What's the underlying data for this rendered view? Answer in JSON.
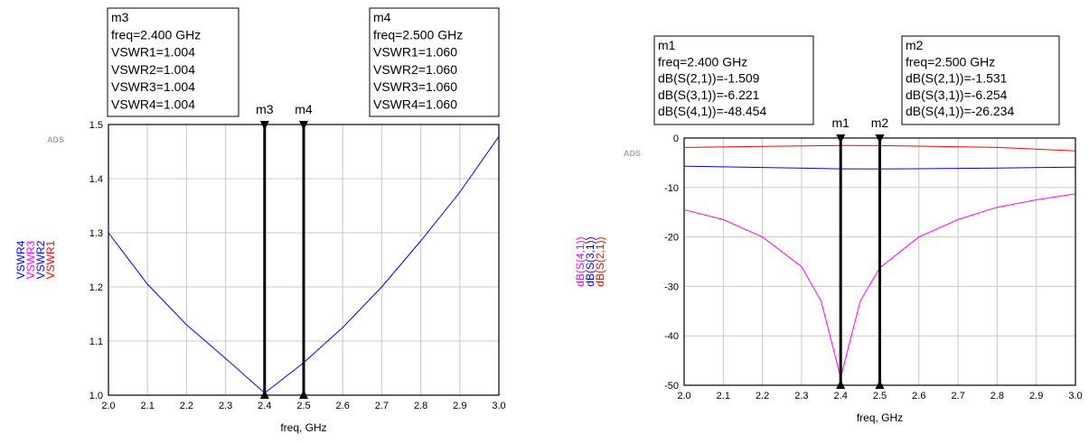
{
  "chart_data": [
    {
      "type": "line",
      "watermark": "ADS",
      "xlabel": "freq, GHz",
      "xlim": [
        2.0,
        3.0
      ],
      "ylim": [
        1.0,
        1.5
      ],
      "xticks": [
        "2.0",
        "2.1",
        "2.2",
        "2.3",
        "2.4",
        "2.5",
        "2.6",
        "2.7",
        "2.8",
        "2.9",
        "3.0"
      ],
      "yticks": [
        "1.0",
        "1.1",
        "1.2",
        "1.3",
        "1.4",
        "1.5"
      ],
      "ylabels": [
        {
          "text": "VSWR4",
          "color": "#0000ff"
        },
        {
          "text": "VSWR3",
          "color": "#ff00ff"
        },
        {
          "text": "VSWR2",
          "color": "#0000ff"
        },
        {
          "text": "VSWR1",
          "color": "#ff0000"
        }
      ],
      "series": [
        {
          "name": "VSWR4",
          "color": "#0000ff",
          "x": [
            2.0,
            2.1,
            2.2,
            2.3,
            2.4,
            2.5,
            2.6,
            2.7,
            2.8,
            2.9,
            3.0
          ],
          "y": [
            1.3,
            1.205,
            1.13,
            1.068,
            1.004,
            1.06,
            1.125,
            1.2,
            1.285,
            1.375,
            1.478
          ]
        }
      ],
      "markers": [
        {
          "id": "m3",
          "x": 2.4,
          "lines": [
            "m3",
            "freq=2.400 GHz",
            "VSWR1=1.004",
            "VSWR2=1.004",
            "VSWR3=1.004",
            "VSWR4=1.004"
          ]
        },
        {
          "id": "m4",
          "x": 2.5,
          "lines": [
            "m4",
            "freq=2.500 GHz",
            "VSWR1=1.060",
            "VSWR2=1.060",
            "VSWR3=1.060",
            "VSWR4=1.060"
          ]
        }
      ]
    },
    {
      "type": "line",
      "watermark": "ADS",
      "xlabel": "freq, GHz",
      "xlim": [
        2.0,
        3.0
      ],
      "ylim": [
        -50,
        0
      ],
      "xticks": [
        "2.0",
        "2.1",
        "2.2",
        "2.3",
        "2.4",
        "2.5",
        "2.6",
        "2.7",
        "2.8",
        "2.9",
        "3.0"
      ],
      "yticks": [
        "-50",
        "-40",
        "-30",
        "-20",
        "-10",
        "0"
      ],
      "ylabels": [
        {
          "text": "dB(S(4,1))",
          "color": "#ff00ff"
        },
        {
          "text": "dB(S(3,1))",
          "color": "#0000ff"
        },
        {
          "text": "dB(S(2,1))",
          "color": "#ff0000"
        }
      ],
      "series": [
        {
          "name": "dB(S(2,1))",
          "color": "#ff0000",
          "x": [
            2.0,
            2.2,
            2.4,
            2.5,
            2.6,
            2.8,
            3.0
          ],
          "y": [
            -1.9,
            -1.7,
            -1.509,
            -1.531,
            -1.65,
            -1.9,
            -2.6
          ]
        },
        {
          "name": "dB(S(3,1))",
          "color": "#0000ff",
          "x": [
            2.0,
            2.2,
            2.4,
            2.5,
            2.6,
            2.8,
            3.0
          ],
          "y": [
            -5.7,
            -5.95,
            -6.221,
            -6.254,
            -6.2,
            -6.05,
            -5.9
          ]
        },
        {
          "name": "dB(S(4,1))",
          "color": "#ff00ff",
          "x": [
            2.0,
            2.1,
            2.2,
            2.3,
            2.35,
            2.4,
            2.45,
            2.5,
            2.6,
            2.7,
            2.8,
            2.9,
            3.0
          ],
          "y": [
            -14.5,
            -16.5,
            -20.0,
            -26.0,
            -33.0,
            -48.454,
            -33.0,
            -26.234,
            -20.0,
            -16.5,
            -14.0,
            -12.5,
            -11.3
          ]
        }
      ],
      "markers": [
        {
          "id": "m1",
          "x": 2.4,
          "lines": [
            "m1",
            "freq=2.400 GHz",
            "dB(S(2,1))=-1.509",
            "dB(S(3,1))=-6.221",
            "dB(S(4,1))=-48.454"
          ]
        },
        {
          "id": "m2",
          "x": 2.5,
          "lines": [
            "m2",
            "freq=2.500 GHz",
            "dB(S(2,1))=-1.531",
            "dB(S(3,1))=-6.254",
            "dB(S(4,1))=-26.234"
          ]
        }
      ]
    }
  ]
}
